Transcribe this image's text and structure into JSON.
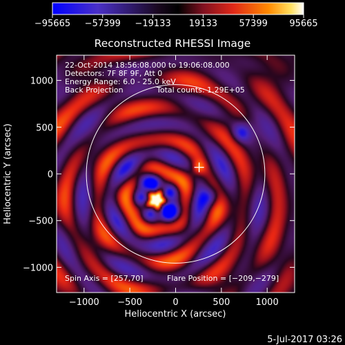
{
  "colorbar": {
    "min": -95665,
    "max": 95665,
    "tick_labels": [
      "−95665",
      "−57399",
      "−19133",
      "19133",
      "57399",
      "95665"
    ]
  },
  "info": {
    "time_range": "22-Oct-2014 18:56:08.000 to 19:06:08.000",
    "detectors": "Detectors: 7F 8F 9F, Att 0",
    "energy_range": "Energy Range: 6.0 - 25.0 keV",
    "method": "Back Projection",
    "total_counts": "Total counts: 1.29E+05",
    "spin_axis": "Spin Axis = [257,70]",
    "flare_position": "Flare Position = [−209,−279]"
  },
  "date_stamp": "5-Jul-2017 03:26",
  "chart_data": {
    "type": "heatmap",
    "title": "Reconstructed RHESSI Image",
    "xlabel": "Heliocentric X (arcsec)",
    "ylabel": "Heliocentric Y (arcsec)",
    "xlim": [
      -1300,
      1300
    ],
    "ylim": [
      -1270,
      1270
    ],
    "x_ticks": [
      -1000,
      -500,
      0,
      500,
      1000
    ],
    "y_ticks": [
      -1000,
      -500,
      0,
      500,
      1000
    ],
    "x_tick_labels": [
      "−1000",
      "−500",
      "0",
      "500",
      "1000"
    ],
    "y_tick_labels": [
      "−1000",
      "−500",
      "0",
      "500",
      "1000"
    ],
    "solar_limb": {
      "center": [
        0,
        0
      ],
      "radius": 975
    },
    "cross_marker": [
      257,
      70
    ],
    "peak_source": [
      -209,
      -279
    ],
    "secondary_source": [
      250,
      65
    ],
    "negative_minima": [
      [
        720,
        440
      ],
      [
        -330,
        -70
      ],
      [
        -40,
        -420
      ],
      [
        390,
        -250
      ]
    ],
    "colorscale": [
      "#0000ff",
      "#5a2fbe",
      "#000000",
      "#a01020",
      "#ff3a12",
      "#ffaa00",
      "#ffffe6"
    ],
    "grid": false,
    "legend": "none"
  }
}
